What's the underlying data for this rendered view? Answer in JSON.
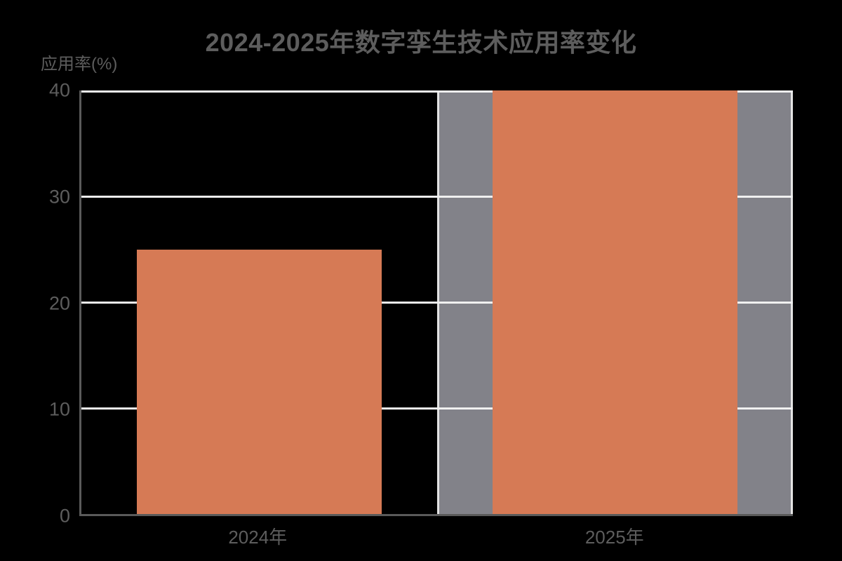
{
  "header": {
    "title": "2024-2025年数字孪生技术应用率变化"
  },
  "chart_data": {
    "type": "bar",
    "title": "2024-2025年数字孪生技术应用率变化",
    "categories": [
      "2024年",
      "2025年"
    ],
    "values": [
      25,
      40
    ],
    "xlabel": "",
    "ylabel": "应用率(%)",
    "ylim": [
      0,
      40
    ],
    "yticks": [
      0,
      10,
      20,
      30,
      40
    ],
    "grid": true,
    "legend": false,
    "highlighted_category": "2025年"
  },
  "colors": {
    "background": "#000000",
    "bar": "#d67a55",
    "highlight_band": "#828289",
    "highlight_band_border": "#e3e3e3",
    "gridline": "#f0f0f0",
    "axis_line": "#5a5a5a",
    "text": "#5d5d5d"
  }
}
